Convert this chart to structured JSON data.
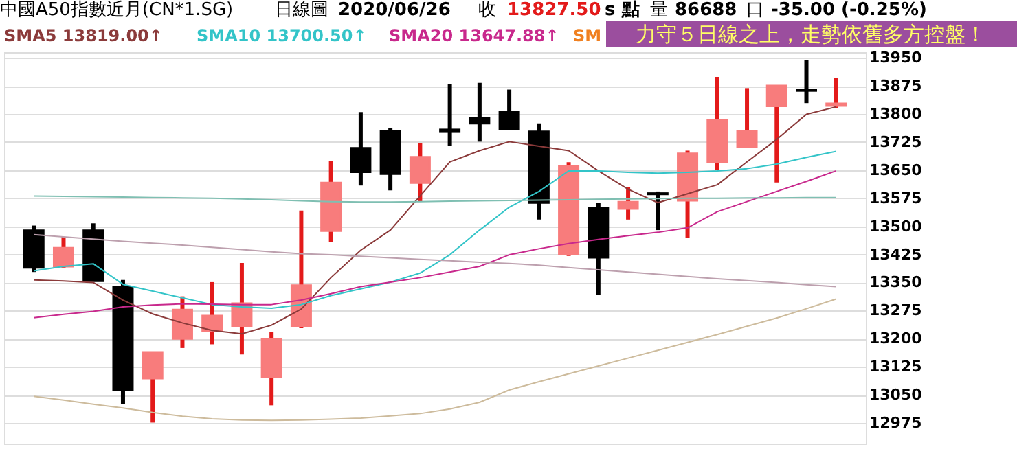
{
  "chart_data": {
    "type": "candlestick",
    "title": "中國A50指數近月(CN*1.SG)",
    "subtitle": "日線圖",
    "annotations": [
      "2020/06/26",
      "收",
      "13827.50",
      "s 點",
      "量",
      "86688",
      "口",
      "-35.00 (-0.25%)",
      "SM",
      "力守５日線之上，走勢依舊多方控盤！"
    ],
    "categories": [
      null,
      null,
      null,
      null,
      null,
      null,
      null,
      null,
      null,
      null,
      null,
      null,
      null,
      null,
      null,
      null,
      null,
      null,
      null,
      null,
      null,
      null,
      null,
      null,
      null,
      null,
      null,
      null
    ],
    "ohlc": [
      [
        13489,
        13502,
        13378,
        13390
      ],
      [
        13393,
        13472,
        13388,
        13442
      ],
      [
        13489,
        13508,
        13354,
        13354
      ],
      [
        13339,
        13357,
        13025,
        13063
      ],
      [
        13094,
        13164,
        12976,
        13164
      ],
      [
        13200,
        13313,
        13175,
        13277
      ],
      [
        13221,
        13351,
        13185,
        13261
      ],
      [
        13234,
        13402,
        13158,
        13294
      ],
      [
        13097,
        13218,
        13022,
        13199
      ],
      [
        13234,
        13542,
        13228,
        13342
      ],
      [
        13488,
        13675,
        13458,
        13616
      ],
      [
        13709,
        13805,
        13609,
        13645
      ],
      [
        13755,
        13763,
        13596,
        13640
      ],
      [
        13616,
        13723,
        13567,
        13685
      ],
      [
        13758,
        13880,
        13714,
        13754
      ],
      [
        13790,
        13883,
        13726,
        13775
      ],
      [
        13805,
        13865,
        13760,
        13760
      ],
      [
        13753,
        13775,
        13518,
        13563
      ],
      [
        13426,
        13671,
        13421,
        13661
      ],
      [
        13549,
        13563,
        13317,
        13417
      ],
      [
        13547,
        13605,
        13518,
        13565
      ],
      [
        13588,
        13593,
        13490,
        13586
      ],
      [
        13569,
        13702,
        13470,
        13694
      ],
      [
        13672,
        13899,
        13651,
        13783
      ],
      [
        13711,
        13869,
        13711,
        13755
      ],
      [
        13821,
        13875,
        13617,
        13875
      ],
      [
        13864,
        13944,
        13829,
        13862
      ],
      [
        13822,
        13896,
        13816,
        13827.5
      ]
    ],
    "series": [
      {
        "name": "SMA5 13819.00↑",
        "color": "#8b3a3a",
        "type": "line",
        "values": [
          13357,
          13354,
          13350,
          13303,
          13266,
          13242,
          13222,
          13213,
          13236,
          13279,
          13363,
          13436,
          13490,
          13581,
          13672,
          13702,
          13726,
          13714,
          13702,
          13648,
          13599,
          13563,
          13587,
          13611,
          13672,
          13732,
          13799,
          13819
        ]
      },
      {
        "name": "SMA10 13700.50↑",
        "color": "#33c4c8",
        "type": "line",
        "values": [
          13381,
          13393,
          13400,
          13345,
          13327,
          13309,
          13291,
          13285,
          13281,
          13291,
          13315,
          13333,
          13351,
          13375,
          13424,
          13490,
          13551,
          13593,
          13648,
          13648,
          13644,
          13642,
          13644,
          13648,
          13654,
          13666,
          13684,
          13700
        ]
      },
      {
        "name": "SMA20 13647.88↑",
        "color": "#c8288c",
        "type": "line",
        "values": [
          13256,
          13265,
          13273,
          13285,
          13290,
          13293,
          13292,
          13291,
          13291,
          13303,
          13320,
          13339,
          13351,
          13363,
          13378,
          13393,
          13424,
          13440,
          13454,
          13465,
          13475,
          13484,
          13496,
          13539,
          13566,
          13593,
          13620,
          13648
        ]
      },
      {
        "color": "#7fbfb2",
        "type": "line",
        "values": [
          13581,
          13580,
          13579,
          13578,
          13577,
          13576,
          13575,
          13573,
          13571,
          13568,
          13566,
          13565,
          13565,
          13566,
          13567,
          13568,
          13569,
          13570,
          13571,
          13572,
          13573,
          13574,
          13575,
          13575,
          13576,
          13576,
          13577,
          13577
        ]
      },
      {
        "color": "#bda0ae",
        "type": "line",
        "values": [
          13478,
          13472,
          13466,
          13460,
          13455,
          13450,
          13444,
          13438,
          13432,
          13427,
          13424,
          13420,
          13416,
          13412,
          13408,
          13404,
          13401,
          13396,
          13390,
          13384,
          13378,
          13372,
          13366,
          13360,
          13355,
          13350,
          13344,
          13339
        ]
      },
      {
        "color": "#cdbb9c",
        "type": "line",
        "values": [
          13046,
          13036,
          13025,
          13015,
          13003,
          12993,
          12986,
          12983,
          12982,
          12983,
          12985,
          12988,
          12994,
          13000,
          13012,
          13030,
          13063,
          13085,
          13106,
          13127,
          13148,
          13169,
          13190,
          13211,
          13233,
          13255,
          13280,
          13306
        ]
      }
    ],
    "ylim": [
      12920,
      13965
    ],
    "yticks": [
      12975,
      13050,
      13125,
      13200,
      13275,
      13350,
      13425,
      13500,
      13575,
      13650,
      13725,
      13800,
      13875,
      13950
    ],
    "grid": "y",
    "legend": "top left",
    "tick_labels": "y"
  }
}
